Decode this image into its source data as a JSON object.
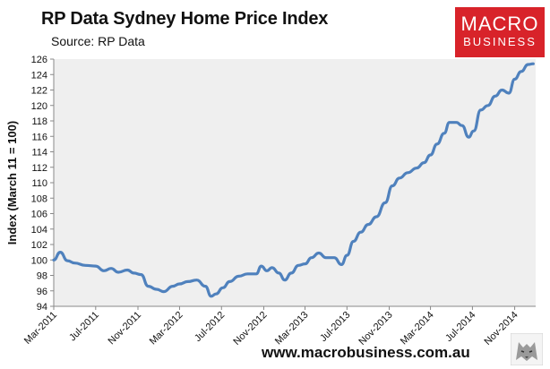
{
  "header": {
    "title": "RP Data Sydney Home Price Index",
    "subtitle": "Source: RP Data"
  },
  "logo": {
    "top": "MACRO",
    "bottom": "BUSINESS"
  },
  "footer": {
    "url": "www.macrobusiness.com.au"
  },
  "icons": {
    "watermark": "wolf-icon"
  },
  "colors": {
    "line": "#4f81bd",
    "plot_bg": "#efefef",
    "logo_bg": "#d8232a"
  },
  "chart_data": {
    "type": "line",
    "title": "RP Data Sydney Home Price Index",
    "subtitle": "Source: RP Data",
    "xlabel": "",
    "ylabel": "Index (March 11 = 100)",
    "ylim": [
      94,
      126
    ],
    "yticks": [
      94,
      96,
      98,
      100,
      102,
      104,
      106,
      108,
      110,
      112,
      114,
      116,
      118,
      120,
      122,
      124,
      126
    ],
    "xlim": [
      "2011-03",
      "2015-01"
    ],
    "xticks": [
      {
        "label": "Mar-2011",
        "date": "2011-03"
      },
      {
        "label": "Jul-2011",
        "date": "2011-07"
      },
      {
        "label": "Nov-2011",
        "date": "2011-11"
      },
      {
        "label": "Mar-2012",
        "date": "2012-03"
      },
      {
        "label": "Jul-2012",
        "date": "2012-07"
      },
      {
        "label": "Nov-2012",
        "date": "2012-11"
      },
      {
        "label": "Mar-2013",
        "date": "2013-03"
      },
      {
        "label": "Jul-2013",
        "date": "2013-07"
      },
      {
        "label": "Nov-2013",
        "date": "2013-11"
      },
      {
        "label": "Mar-2014",
        "date": "2014-03"
      },
      {
        "label": "Jul-2014",
        "date": "2014-07"
      },
      {
        "label": "Nov-2014",
        "date": "2014-11"
      }
    ],
    "grid": false,
    "legend": "none",
    "series": [
      {
        "x": [
          "2011-03-01",
          "2011-03-20",
          "2011-04-10",
          "2011-05-01",
          "2011-06-01",
          "2011-07-01",
          "2011-07-25",
          "2011-08-15",
          "2011-09-05",
          "2011-10-01",
          "2011-10-20",
          "2011-11-10",
          "2011-12-01",
          "2011-12-25",
          "2012-01-15",
          "2012-02-10",
          "2012-03-01",
          "2012-03-25",
          "2012-04-20",
          "2012-05-15",
          "2012-06-01",
          "2012-06-15",
          "2012-07-05",
          "2012-07-25",
          "2012-08-20",
          "2012-09-15",
          "2012-10-10",
          "2012-10-25",
          "2012-11-10",
          "2012-11-25",
          "2012-12-15",
          "2013-01-01",
          "2013-01-20",
          "2013-02-10",
          "2013-03-01",
          "2013-03-20",
          "2013-04-10",
          "2013-05-01",
          "2013-05-25",
          "2013-06-15",
          "2013-07-01",
          "2013-07-20",
          "2013-08-10",
          "2013-09-01",
          "2013-09-25",
          "2013-10-20",
          "2013-11-10",
          "2013-12-01",
          "2013-12-25",
          "2014-01-20",
          "2014-02-10",
          "2014-03-01",
          "2014-03-20",
          "2014-04-10",
          "2014-04-25",
          "2014-05-15",
          "2014-06-01",
          "2014-06-20",
          "2014-07-05",
          "2014-07-25",
          "2014-08-15",
          "2014-09-05",
          "2014-09-25",
          "2014-10-15",
          "2014-11-01",
          "2014-11-20",
          "2014-12-10",
          "2014-12-25"
        ],
        "values": [
          100.0,
          101.0,
          99.9,
          99.6,
          99.3,
          99.2,
          98.6,
          98.9,
          98.4,
          98.7,
          98.3,
          98.1,
          96.6,
          96.2,
          95.9,
          96.6,
          96.9,
          97.2,
          97.4,
          96.6,
          95.3,
          95.6,
          96.4,
          97.2,
          97.9,
          98.2,
          98.2,
          99.2,
          98.6,
          99.0,
          98.3,
          97.4,
          98.3,
          99.3,
          99.5,
          100.3,
          100.9,
          100.3,
          100.3,
          99.4,
          100.6,
          102.4,
          103.6,
          104.6,
          105.6,
          107.4,
          109.6,
          110.6,
          111.3,
          111.9,
          112.6,
          113.6,
          115.0,
          116.4,
          117.8,
          117.8,
          117.4,
          115.9,
          116.7,
          119.4,
          120.0,
          121.2,
          122.0,
          121.6,
          123.4,
          124.4,
          125.3,
          125.4
        ]
      }
    ]
  }
}
